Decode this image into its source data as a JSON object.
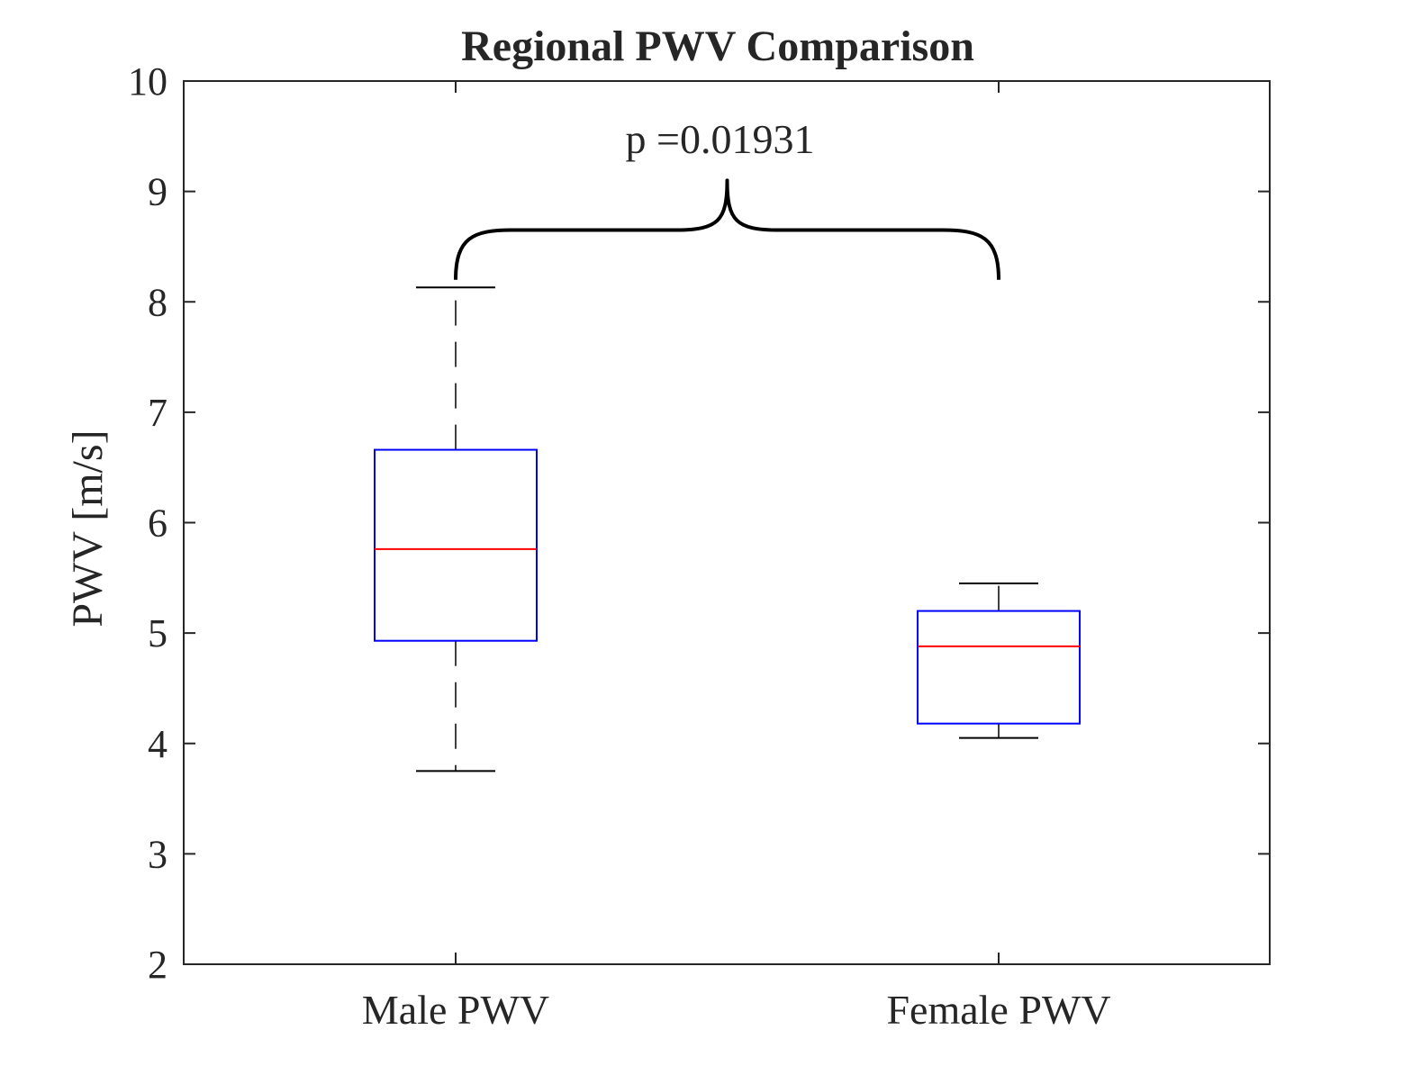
{
  "chart_data": {
    "type": "box",
    "title": "Regional PWV Comparison",
    "xlabel": "",
    "ylabel": "PWV [m/s]",
    "ylim": [
      2,
      10
    ],
    "yticks": [
      2,
      3,
      4,
      5,
      6,
      7,
      8,
      9,
      10
    ],
    "categories": [
      "Male PWV",
      "Female PWV"
    ],
    "boxes": [
      {
        "category": "Male PWV",
        "whisker_low": 3.75,
        "q1": 4.93,
        "median": 5.76,
        "q3": 6.66,
        "whisker_high": 8.13
      },
      {
        "category": "Female PWV",
        "whisker_low": 4.05,
        "q1": 4.18,
        "median": 4.88,
        "q3": 5.2,
        "whisker_high": 5.45
      }
    ],
    "annotation": {
      "text": "p =0.01931",
      "bracket_from": "Male PWV",
      "bracket_to": "Female PWV",
      "bracket_base_y": 8.2,
      "bracket_top_y": 8.65,
      "bracket_tip_y": 9.1
    },
    "colors": {
      "box": "#0000ff",
      "median": "#ff0000",
      "whisker": "#000000",
      "axis": "#262626"
    },
    "grid": false,
    "legend": "none"
  }
}
